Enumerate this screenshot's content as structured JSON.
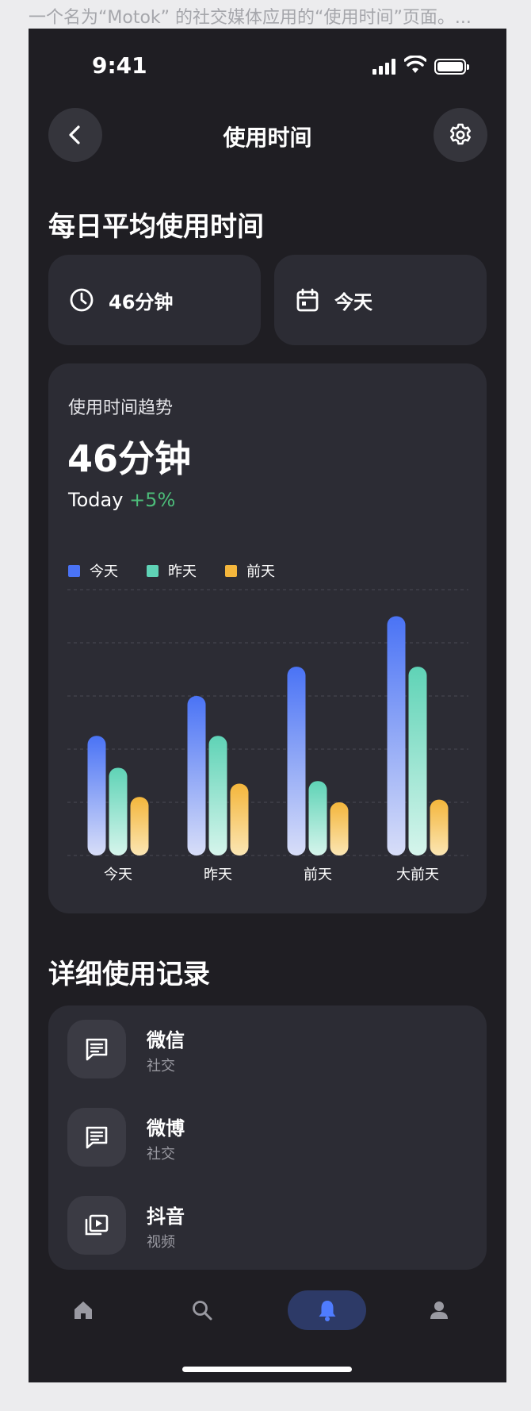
{
  "caption": "一个名为“Motok” 的社交媒体应用的“使用时间”页面。...",
  "status_bar": {
    "time": "9:41"
  },
  "header": {
    "title": "使用时间",
    "back_icon": "chevron-left-icon",
    "settings_icon": "gear-icon"
  },
  "daily": {
    "heading": "每日平均使用时间",
    "duration": {
      "icon": "clock-icon",
      "label": "46分钟"
    },
    "period": {
      "icon": "calendar-icon",
      "label": "今天"
    }
  },
  "trend": {
    "title": "使用时间趋势",
    "value": "46分钟",
    "change_label": "Today",
    "change_value": "+5%",
    "change_color": "#4cbc79"
  },
  "chart_data": {
    "type": "bar",
    "categories": [
      "今天",
      "昨天",
      "前天",
      "大前天"
    ],
    "series": [
      {
        "name": "今天",
        "color": "#4a73f5",
        "values": [
          45,
          60,
          71,
          90
        ]
      },
      {
        "name": "昨天",
        "color": "#5fd3b6",
        "values": [
          33,
          45,
          28,
          71
        ]
      },
      {
        "name": "前天",
        "color": "#f4b63c",
        "values": [
          22,
          27,
          20,
          21
        ]
      }
    ],
    "ylim": [
      0,
      100
    ],
    "grid": true,
    "legend": "top-left"
  },
  "records": {
    "heading": "详细使用记录",
    "items": [
      {
        "name": "微信",
        "category": "社交",
        "icon": "chat-icon"
      },
      {
        "name": "微博",
        "category": "社交",
        "icon": "chat-icon"
      },
      {
        "name": "抖音",
        "category": "视频",
        "icon": "video-icon"
      }
    ]
  },
  "tabbar": {
    "items": [
      {
        "icon": "home-icon"
      },
      {
        "icon": "search-icon"
      },
      {
        "icon": "bell-icon",
        "active": true
      },
      {
        "icon": "user-icon"
      }
    ],
    "active_color": "#4f7cff",
    "active_bg": "#2d3a67"
  }
}
